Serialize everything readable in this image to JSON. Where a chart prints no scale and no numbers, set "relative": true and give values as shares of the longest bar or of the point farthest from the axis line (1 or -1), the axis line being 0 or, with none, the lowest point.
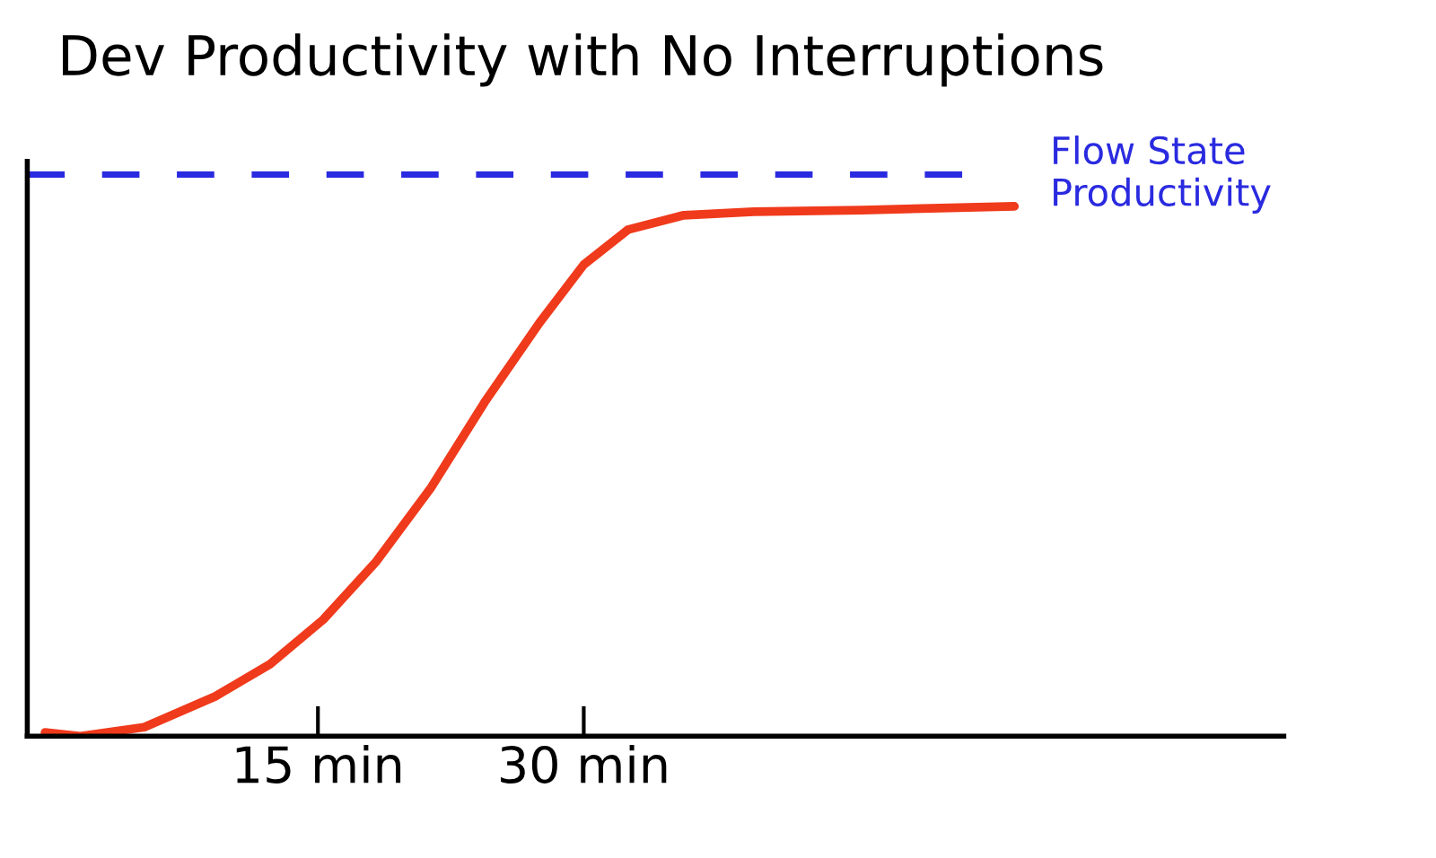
{
  "chart_data": {
    "type": "line",
    "title": "Dev Productivity with No Interruptions",
    "relative": true,
    "tick_labels": "x",
    "xlim": [
      -1.4,
      69.5
    ],
    "xticks": [
      {
        "value": 15,
        "label": "15 min"
      },
      {
        "value": 30,
        "label": "30 min"
      }
    ],
    "series": [
      {
        "color": "#f03a1c",
        "x": [
          -0.4,
          1.6,
          5.2,
          9.2,
          12.3,
          15.3,
          18.3,
          21.4,
          24.4,
          27.5,
          30.0,
          32.5,
          35.6,
          39.6,
          45.7,
          54.3
        ],
        "values": [
          0.007,
          0,
          0.017,
          0.075,
          0.136,
          0.22,
          0.33,
          0.47,
          0.63,
          0.78,
          0.89,
          0.956,
          0.983,
          0.99,
          0.993,
          1.0
        ]
      }
    ],
    "ref_lines": [
      {
        "axis": "y",
        "value": 1.06,
        "label": "Flow State\nProductivity",
        "color": "#2a2ae0",
        "line_style": "dashed"
      }
    ],
    "grid": false,
    "legend": false,
    "marker": "none",
    "line_style": "solid"
  }
}
